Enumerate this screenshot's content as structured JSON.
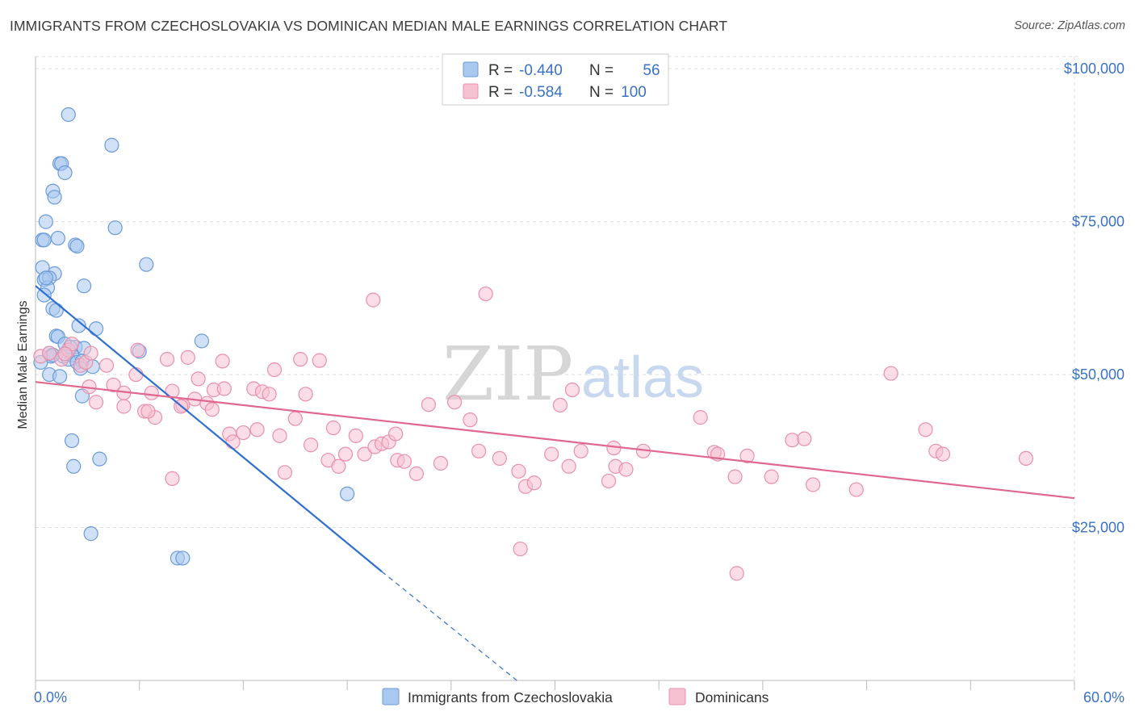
{
  "title": "IMMIGRANTS FROM CZECHOSLOVAKIA VS DOMINICAN MEDIAN MALE EARNINGS CORRELATION CHART",
  "source": "Source: ZipAtlas.com",
  "watermark": {
    "zip": "ZIP",
    "atlas": "atlas"
  },
  "colors": {
    "blue_fill": "#a9c8f0",
    "blue_stroke": "#6a9bd8",
    "blue_line": "#2f6fcf",
    "pink_fill": "#f6c1d1",
    "pink_stroke": "#e890ad",
    "pink_line": "#e0688e",
    "axis_text": "#3a72c4",
    "grid": "#dddddd"
  },
  "legend_top": {
    "rows": [
      {
        "r_label": "R =",
        "r_value": "-0.440",
        "n_label": "N =",
        "n_value": "56"
      },
      {
        "r_label": "R =",
        "r_value": "-0.584",
        "n_label": "N =",
        "n_value": "100"
      }
    ]
  },
  "legend_bottom": [
    "Immigrants from Czechoslovakia",
    "Dominicans"
  ],
  "chart_data": {
    "type": "scatter",
    "ylabel": "Median Male Earnings",
    "xlim": [
      0,
      60
    ],
    "ylim": [
      0,
      102000
    ],
    "x_tick_labels": [
      {
        "value": 0,
        "label": "0.0%"
      },
      {
        "value": 60,
        "label": "60.0%"
      }
    ],
    "y_tick_labels": [
      {
        "value": 25000,
        "label": "$25,000"
      },
      {
        "value": 50000,
        "label": "$50,000"
      },
      {
        "value": 75000,
        "label": "$75,000"
      },
      {
        "value": 100000,
        "label": "$100,000"
      }
    ],
    "series": [
      {
        "name": "Immigrants from Czechoslovakia",
        "color": "blue",
        "points": [
          [
            1.9,
            92500
          ],
          [
            4.4,
            87500
          ],
          [
            1.4,
            84500
          ],
          [
            1.5,
            84500
          ],
          [
            1.7,
            83000
          ],
          [
            1.0,
            80000
          ],
          [
            1.1,
            79000
          ],
          [
            0.6,
            75000
          ],
          [
            4.6,
            74000
          ],
          [
            0.4,
            72000
          ],
          [
            0.5,
            72000
          ],
          [
            1.3,
            72300
          ],
          [
            2.3,
            71200
          ],
          [
            2.4,
            71000
          ],
          [
            6.4,
            68000
          ],
          [
            0.4,
            67500
          ],
          [
            1.1,
            66500
          ],
          [
            0.5,
            65500
          ],
          [
            0.8,
            65800
          ],
          [
            0.7,
            64200
          ],
          [
            2.8,
            64500
          ],
          [
            0.5,
            63000
          ],
          [
            1.0,
            60800
          ],
          [
            1.2,
            60500
          ],
          [
            2.5,
            58000
          ],
          [
            3.5,
            57500
          ],
          [
            1.2,
            56300
          ],
          [
            1.3,
            56200
          ],
          [
            9.6,
            55500
          ],
          [
            1.7,
            55000
          ],
          [
            2.3,
            54500
          ],
          [
            2.8,
            54300
          ],
          [
            6.0,
            53800
          ],
          [
            0.8,
            53500
          ],
          [
            0.9,
            53000
          ],
          [
            1.6,
            53000
          ],
          [
            2.1,
            53200
          ],
          [
            1.9,
            52500
          ],
          [
            2.4,
            52000
          ],
          [
            2.7,
            52200
          ],
          [
            3.3,
            51300
          ],
          [
            2.6,
            51000
          ],
          [
            0.8,
            50000
          ],
          [
            1.4,
            49700
          ],
          [
            2.7,
            46500
          ],
          [
            2.1,
            39200
          ],
          [
            2.2,
            35000
          ],
          [
            3.7,
            36200
          ],
          [
            18.0,
            30500
          ],
          [
            3.2,
            24000
          ],
          [
            8.2,
            20000
          ],
          [
            8.5,
            20000
          ],
          [
            0.3,
            52000
          ],
          [
            1.0,
            53200
          ],
          [
            0.6,
            65800
          ],
          [
            2.0,
            54500
          ]
        ]
      },
      {
        "name": "Dominicans",
        "color": "pink",
        "points": [
          [
            0.3,
            53000
          ],
          [
            0.8,
            53500
          ],
          [
            1.5,
            52500
          ],
          [
            1.9,
            54000
          ],
          [
            2.1,
            55000
          ],
          [
            2.6,
            51500
          ],
          [
            2.9,
            52000
          ],
          [
            3.5,
            45500
          ],
          [
            3.1,
            48000
          ],
          [
            4.1,
            51500
          ],
          [
            4.5,
            48300
          ],
          [
            5.1,
            47000
          ],
          [
            5.1,
            44800
          ],
          [
            5.8,
            50000
          ],
          [
            5.9,
            54000
          ],
          [
            6.3,
            44000
          ],
          [
            6.7,
            47000
          ],
          [
            6.9,
            43000
          ],
          [
            7.6,
            52500
          ],
          [
            7.9,
            47300
          ],
          [
            7.9,
            33000
          ],
          [
            8.5,
            45000
          ],
          [
            8.8,
            52800
          ],
          [
            9.2,
            46000
          ],
          [
            9.4,
            49300
          ],
          [
            9.9,
            45300
          ],
          [
            10.3,
            47500
          ],
          [
            10.2,
            44300
          ],
          [
            10.8,
            52200
          ],
          [
            11.2,
            40300
          ],
          [
            11.4,
            39000
          ],
          [
            12.0,
            40500
          ],
          [
            12.6,
            47700
          ],
          [
            12.8,
            41000
          ],
          [
            13.1,
            47200
          ],
          [
            13.5,
            46800
          ],
          [
            13.8,
            50800
          ],
          [
            14.1,
            40000
          ],
          [
            14.4,
            34000
          ],
          [
            15.0,
            42800
          ],
          [
            15.3,
            52500
          ],
          [
            15.6,
            46800
          ],
          [
            15.9,
            38500
          ],
          [
            16.4,
            52300
          ],
          [
            16.9,
            36000
          ],
          [
            17.2,
            41300
          ],
          [
            17.5,
            35000
          ],
          [
            17.9,
            37000
          ],
          [
            18.5,
            40000
          ],
          [
            19.0,
            37000
          ],
          [
            19.5,
            62200
          ],
          [
            19.6,
            38200
          ],
          [
            20.0,
            38700
          ],
          [
            20.4,
            39000
          ],
          [
            20.8,
            40300
          ],
          [
            20.9,
            36000
          ],
          [
            21.3,
            35800
          ],
          [
            22.0,
            33800
          ],
          [
            22.7,
            45100
          ],
          [
            23.4,
            35500
          ],
          [
            24.2,
            45500
          ],
          [
            25.1,
            42600
          ],
          [
            25.6,
            37500
          ],
          [
            26.0,
            63200
          ],
          [
            26.8,
            36300
          ],
          [
            27.9,
            34200
          ],
          [
            28.3,
            31700
          ],
          [
            28.8,
            32300
          ],
          [
            29.8,
            37000
          ],
          [
            30.3,
            45000
          ],
          [
            30.8,
            35000
          ],
          [
            31.0,
            47500
          ],
          [
            31.5,
            37500
          ],
          [
            33.1,
            32600
          ],
          [
            33.4,
            38000
          ],
          [
            33.5,
            35000
          ],
          [
            34.1,
            34500
          ],
          [
            35.1,
            37500
          ],
          [
            28.0,
            21500
          ],
          [
            38.4,
            43000
          ],
          [
            39.2,
            37300
          ],
          [
            39.4,
            37000
          ],
          [
            40.4,
            33300
          ],
          [
            40.5,
            17500
          ],
          [
            41.1,
            36700
          ],
          [
            42.5,
            33300
          ],
          [
            43.7,
            39300
          ],
          [
            44.4,
            39500
          ],
          [
            44.9,
            32000
          ],
          [
            47.4,
            31200
          ],
          [
            49.4,
            50200
          ],
          [
            51.4,
            41000
          ],
          [
            52.0,
            37500
          ],
          [
            52.4,
            37000
          ],
          [
            57.2,
            36300
          ],
          [
            3.2,
            53500
          ],
          [
            1.7,
            53400
          ],
          [
            6.5,
            44000
          ],
          [
            10.9,
            47700
          ],
          [
            8.4,
            44800
          ]
        ]
      }
    ],
    "trend_lines": [
      {
        "series": "Immigrants from Czechoslovakia",
        "solid": [
          [
            0,
            64500
          ],
          [
            20.0,
            17800
          ]
        ],
        "dashed": [
          [
            20.0,
            17800
          ],
          [
            27.8,
            0
          ]
        ]
      },
      {
        "series": "Dominicans",
        "solid": [
          [
            0,
            48800
          ],
          [
            60,
            29800
          ]
        ]
      }
    ]
  }
}
